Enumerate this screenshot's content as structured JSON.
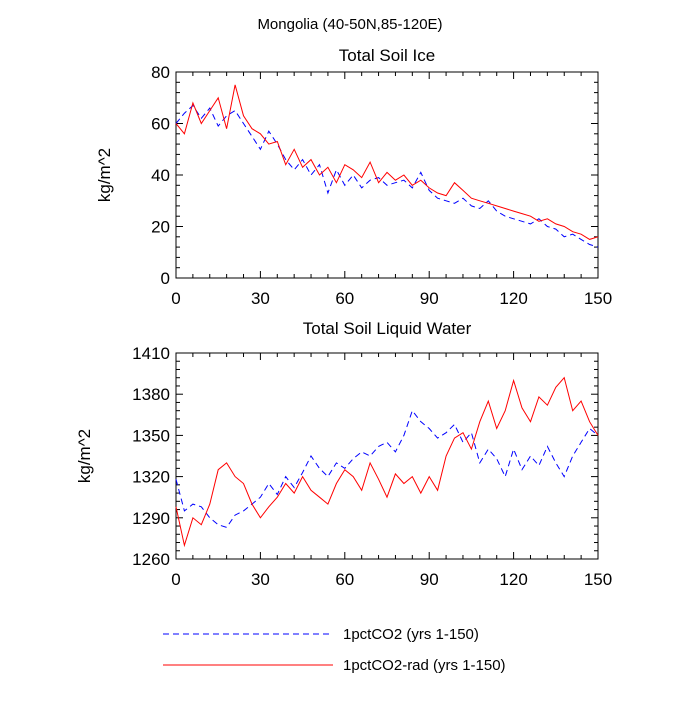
{
  "figure_title": "Mongolia (40-50N,85-120E)",
  "legend": [
    {
      "label": "1pctCO2 (yrs 1-150)",
      "color": "#0000ff",
      "dash": "dashed"
    },
    {
      "label": "1pctCO2-rad (yrs 1-150)",
      "color": "#ff0000",
      "dash": "solid"
    }
  ],
  "chart_data": [
    {
      "type": "line",
      "title": "Total Soil Ice",
      "xlabel": "",
      "ylabel": "kg/m^2",
      "xlim": [
        0,
        150
      ],
      "ylim": [
        0,
        80
      ],
      "xticks": [
        0,
        30,
        60,
        90,
        120,
        150
      ],
      "yticks": [
        0,
        20,
        40,
        60,
        80
      ],
      "grid": false,
      "legend_position": "bottom",
      "series": [
        {
          "name": "1pctCO2 (yrs 1-150)",
          "color": "#0000ff",
          "style": "dashed",
          "x": [
            0,
            3,
            6,
            9,
            12,
            15,
            18,
            21,
            24,
            27,
            30,
            33,
            36,
            39,
            42,
            45,
            48,
            51,
            54,
            57,
            60,
            63,
            66,
            69,
            72,
            75,
            78,
            81,
            84,
            87,
            90,
            93,
            96,
            99,
            102,
            105,
            108,
            111,
            114,
            117,
            120,
            123,
            126,
            129,
            132,
            135,
            138,
            141,
            144,
            147,
            150
          ],
          "y": [
            60,
            64,
            67,
            62,
            66,
            59,
            63,
            65,
            60,
            55,
            50,
            57,
            52,
            46,
            42,
            46,
            40,
            44,
            33,
            42,
            36,
            40,
            35,
            38,
            39,
            36,
            37,
            38,
            35,
            41,
            34,
            31,
            30,
            29,
            31,
            28,
            27,
            30,
            26,
            24,
            23,
            22,
            21,
            23,
            20,
            19,
            16,
            17,
            15,
            13,
            12
          ]
        },
        {
          "name": "1pctCO2-rad (yrs 1-150)",
          "color": "#ff0000",
          "style": "solid",
          "x": [
            0,
            3,
            6,
            9,
            12,
            15,
            18,
            21,
            24,
            27,
            30,
            33,
            36,
            39,
            42,
            45,
            48,
            51,
            54,
            57,
            60,
            63,
            66,
            69,
            72,
            75,
            78,
            81,
            84,
            87,
            90,
            93,
            96,
            99,
            102,
            105,
            108,
            111,
            114,
            117,
            120,
            123,
            126,
            129,
            132,
            135,
            138,
            141,
            144,
            147,
            150
          ],
          "y": [
            60,
            56,
            68,
            60,
            65,
            70,
            58,
            75,
            63,
            58,
            56,
            52,
            53,
            44,
            50,
            43,
            46,
            40,
            43,
            37,
            44,
            42,
            39,
            45,
            37,
            41,
            38,
            40,
            36,
            38,
            35,
            33,
            32,
            37,
            34,
            31,
            30,
            29,
            28,
            27,
            26,
            25,
            24,
            22,
            23,
            21,
            20,
            18,
            17,
            15,
            16
          ]
        }
      ]
    },
    {
      "type": "line",
      "title": "Total Soil Liquid Water",
      "xlabel": "",
      "ylabel": "kg/m^2",
      "xlim": [
        0,
        150
      ],
      "ylim": [
        1260,
        1410
      ],
      "xticks": [
        0,
        30,
        60,
        90,
        120,
        150
      ],
      "yticks": [
        1260,
        1290,
        1320,
        1350,
        1380,
        1410
      ],
      "grid": false,
      "legend_position": "bottom",
      "series": [
        {
          "name": "1pctCO2 (yrs 1-150)",
          "color": "#0000ff",
          "style": "dashed",
          "x": [
            0,
            3,
            6,
            9,
            12,
            15,
            18,
            21,
            24,
            27,
            30,
            33,
            36,
            39,
            42,
            45,
            48,
            51,
            54,
            57,
            60,
            63,
            66,
            69,
            72,
            75,
            78,
            81,
            84,
            87,
            90,
            93,
            96,
            99,
            102,
            105,
            108,
            111,
            114,
            117,
            120,
            123,
            126,
            129,
            132,
            135,
            138,
            141,
            144,
            147,
            150
          ],
          "y": [
            1318,
            1295,
            1300,
            1298,
            1290,
            1285,
            1283,
            1292,
            1295,
            1300,
            1305,
            1315,
            1307,
            1320,
            1312,
            1323,
            1335,
            1326,
            1320,
            1330,
            1326,
            1333,
            1338,
            1335,
            1342,
            1345,
            1338,
            1350,
            1368,
            1360,
            1355,
            1348,
            1352,
            1358,
            1345,
            1352,
            1330,
            1340,
            1333,
            1320,
            1340,
            1325,
            1335,
            1328,
            1342,
            1330,
            1320,
            1335,
            1345,
            1355,
            1350
          ]
        },
        {
          "name": "1pctCO2-rad (yrs 1-150)",
          "color": "#ff0000",
          "style": "solid",
          "x": [
            0,
            3,
            6,
            9,
            12,
            15,
            18,
            21,
            24,
            27,
            30,
            33,
            36,
            39,
            42,
            45,
            48,
            51,
            54,
            57,
            60,
            63,
            66,
            69,
            72,
            75,
            78,
            81,
            84,
            87,
            90,
            93,
            96,
            99,
            102,
            105,
            108,
            111,
            114,
            117,
            120,
            123,
            126,
            129,
            132,
            135,
            138,
            141,
            144,
            147,
            150
          ],
          "y": [
            1298,
            1270,
            1290,
            1285,
            1300,
            1325,
            1330,
            1320,
            1315,
            1300,
            1290,
            1298,
            1305,
            1315,
            1308,
            1320,
            1310,
            1305,
            1300,
            1315,
            1325,
            1320,
            1310,
            1330,
            1318,
            1305,
            1322,
            1315,
            1320,
            1308,
            1320,
            1310,
            1335,
            1348,
            1352,
            1340,
            1360,
            1375,
            1355,
            1368,
            1390,
            1370,
            1360,
            1378,
            1372,
            1385,
            1392,
            1368,
            1375,
            1360,
            1350
          ]
        }
      ]
    }
  ]
}
